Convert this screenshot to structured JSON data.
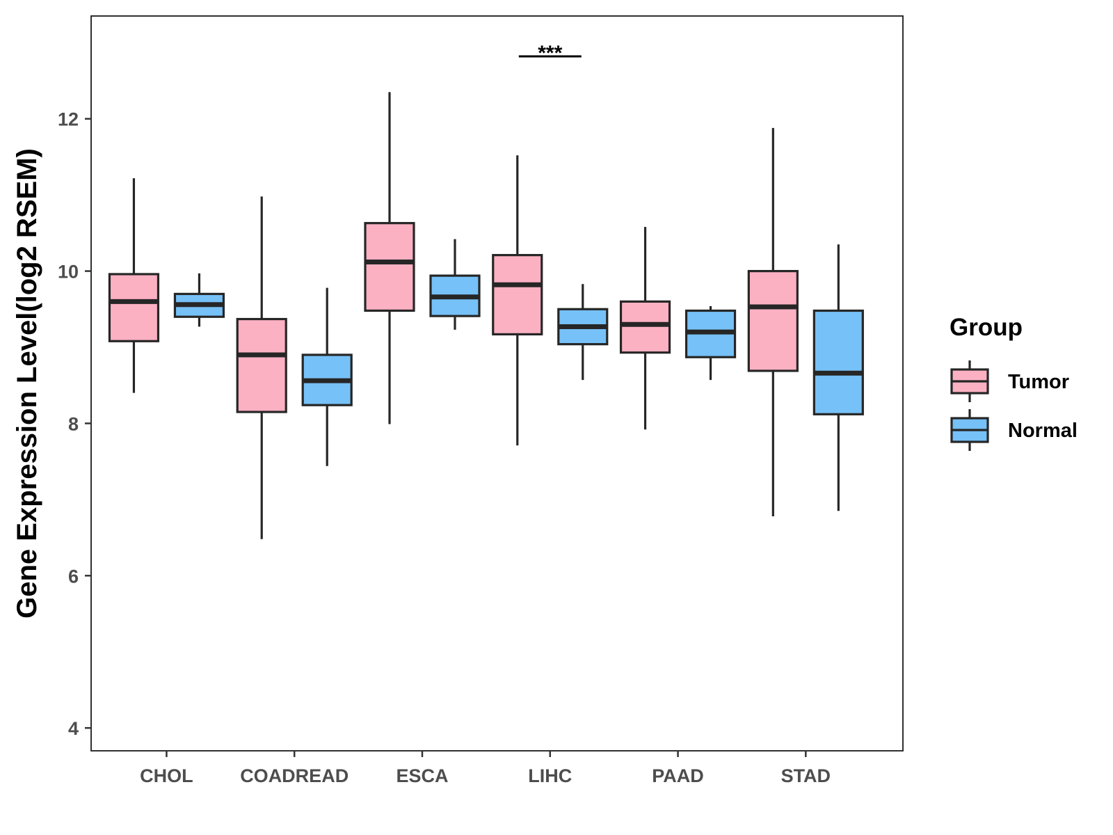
{
  "chart_data": {
    "type": "boxplot",
    "title": "",
    "xlabel": "",
    "ylabel": "Gene Expression Level(log2 RSEM)",
    "ylim": [
      3.7,
      13.35
    ],
    "yticks": [
      4,
      6,
      8,
      10,
      12
    ],
    "categories": [
      "CHOL",
      "COADREAD",
      "ESCA",
      "LIHC",
      "PAAD",
      "STAD"
    ],
    "grid": false,
    "legend": {
      "title": "Group",
      "position": "right"
    },
    "series": [
      {
        "name": "Tumor",
        "color": "#FCB1C3",
        "boxes": [
          {
            "min": 8.4,
            "q1": 9.08,
            "median": 9.6,
            "q3": 9.96,
            "max": 11.22
          },
          {
            "min": 6.48,
            "q1": 8.15,
            "median": 8.9,
            "q3": 9.37,
            "max": 10.98
          },
          {
            "min": 7.99,
            "q1": 9.48,
            "median": 10.12,
            "q3": 10.63,
            "max": 12.35
          },
          {
            "min": 7.71,
            "q1": 9.17,
            "median": 9.82,
            "q3": 10.21,
            "max": 11.52
          },
          {
            "min": 7.92,
            "q1": 8.93,
            "median": 9.3,
            "q3": 9.6,
            "max": 10.58
          },
          {
            "min": 6.78,
            "q1": 8.69,
            "median": 9.53,
            "q3": 10.0,
            "max": 11.88
          }
        ]
      },
      {
        "name": "Normal",
        "color": "#76C1F7",
        "boxes": [
          {
            "min": 9.27,
            "q1": 9.4,
            "median": 9.56,
            "q3": 9.7,
            "max": 9.97
          },
          {
            "min": 7.44,
            "q1": 8.24,
            "median": 8.56,
            "q3": 8.9,
            "max": 9.78
          },
          {
            "min": 9.23,
            "q1": 9.41,
            "median": 9.66,
            "q3": 9.94,
            "max": 10.42
          },
          {
            "min": 8.57,
            "q1": 9.04,
            "median": 9.27,
            "q3": 9.5,
            "max": 9.83
          },
          {
            "min": 8.57,
            "q1": 8.87,
            "median": 9.2,
            "q3": 9.48,
            "max": 9.54
          },
          {
            "min": 6.85,
            "q1": 8.12,
            "median": 8.66,
            "q3": 9.48,
            "max": 10.35
          }
        ]
      }
    ],
    "annotations": [
      {
        "category": "LIHC",
        "label": "***",
        "y": 12.82
      }
    ]
  }
}
